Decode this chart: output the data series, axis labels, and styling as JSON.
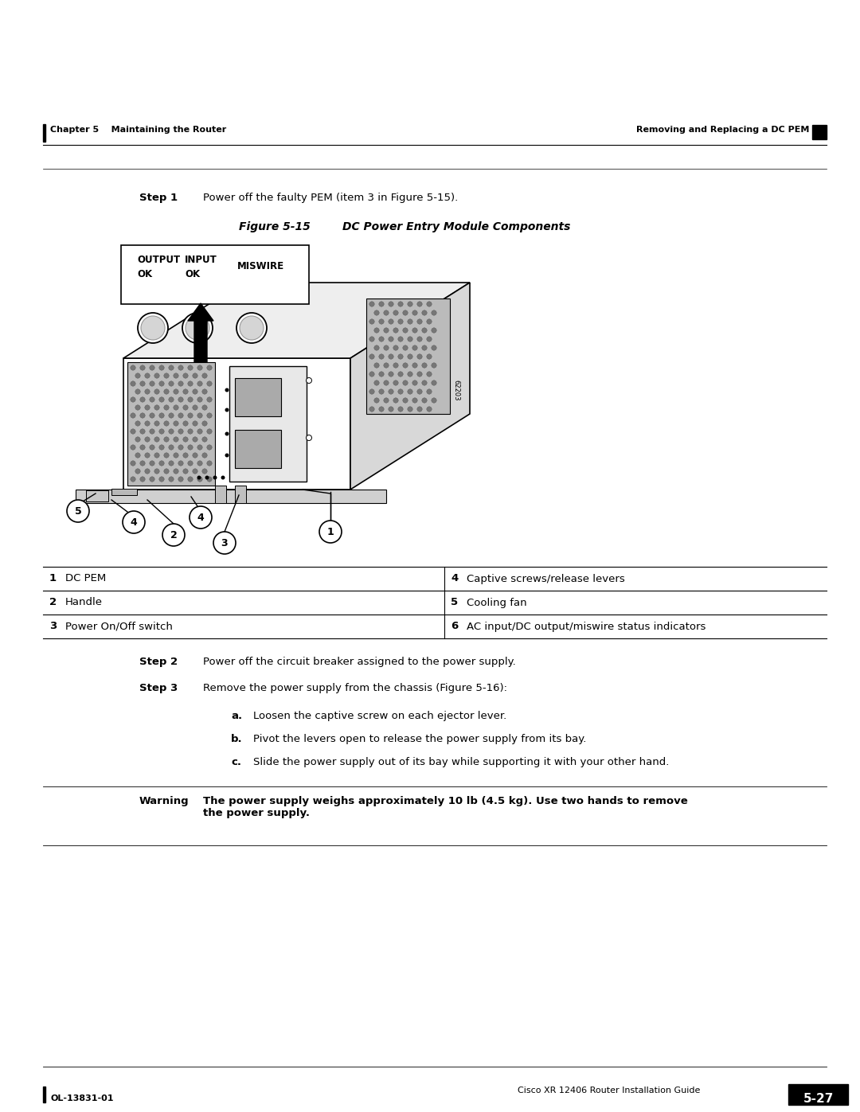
{
  "page_width": 10.8,
  "page_height": 13.97,
  "bg_color": "#ffffff",
  "header_left": "Chapter 5    Maintaining the Router",
  "header_right": "Removing and Replacing a DC PEM",
  "footer_left": "OL-13831-01",
  "footer_right_label": "Cisco XR 12406 Router Installation Guide",
  "footer_page": "5-27",
  "step1_label": "Step 1",
  "step1_text": "Power off the faulty PEM (item 3 in Figure 5-15).",
  "figure_label": "Figure 5-15",
  "figure_title": "DC Power Entry Module Components",
  "table_items": [
    {
      "num": "1",
      "label": "DC PEM",
      "num2": "4",
      "label2": "Captive screws/release levers"
    },
    {
      "num": "2",
      "label": "Handle",
      "num2": "5",
      "label2": "Cooling fan"
    },
    {
      "num": "3",
      "label": "Power On/Off switch",
      "num2": "6",
      "label2": "AC input/DC output/miswire status indicators"
    }
  ],
  "step2_label": "Step 2",
  "step2_text": "Power off the circuit breaker assigned to the power supply.",
  "step3_label": "Step 3",
  "step3_text": "Remove the power supply from the chassis (Figure 5-16):",
  "step3a": "Loosen the captive screw on each ejector lever.",
  "step3b": "Pivot the levers open to release the power supply from its bay.",
  "step3c": "Slide the power supply out of its bay while supporting it with your other hand.",
  "warning_label": "Warning",
  "warning_text": "The power supply weighs approximately 10 lb (4.5 kg). Use two hands to remove\nthe power supply."
}
